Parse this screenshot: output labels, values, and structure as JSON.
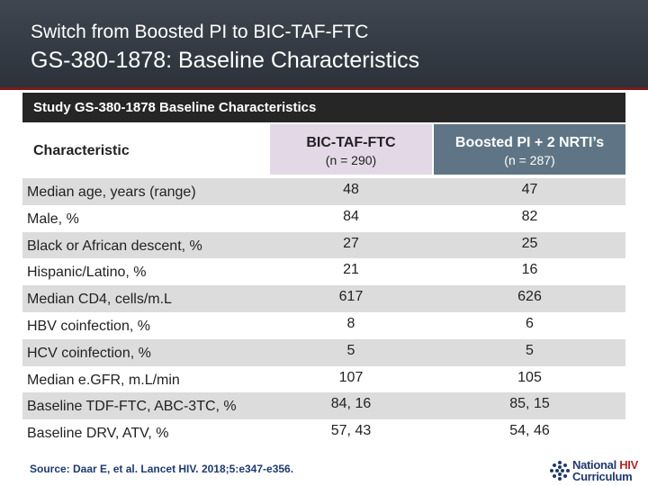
{
  "header": {
    "subtitle": "Switch from Boosted PI to BIC-TAF-FTC",
    "title": "GS-380-1878: Baseline Characteristics"
  },
  "table": {
    "title": "Study GS-380-1878 Baseline Characteristics",
    "char_header": "Characteristic",
    "col1": {
      "name": "BIC-TAF-FTC",
      "n": "(n = 290)"
    },
    "col2": {
      "name": "Boosted PI + 2 NRTI’s",
      "n": "(n = 287)"
    },
    "rows": [
      {
        "label": "Median age, years (range)",
        "v1": "48",
        "v2": "47"
      },
      {
        "label": "Male, %",
        "v1": "84",
        "v2": "82"
      },
      {
        "label": "Black or African descent, %",
        "v1": "27",
        "v2": "25"
      },
      {
        "label": "Hispanic/Latino, %",
        "v1": "21",
        "v2": "16"
      },
      {
        "label": "Median CD4, cells/m.L",
        "v1": "617",
        "v2": "626"
      },
      {
        "label": "HBV coinfection, %",
        "v1": "8",
        "v2": "6"
      },
      {
        "label": "HCV coinfection, %",
        "v1": "5",
        "v2": "5"
      },
      {
        "label": "Median e.GFR, m.L/min",
        "v1": "107",
        "v2": "105"
      },
      {
        "label": "Baseline TDF-FTC, ABC-3TC, %",
        "v1": "84, 16",
        "v2": "85, 15"
      },
      {
        "label": "Baseline DRV, ATV, %",
        "v1": "57, 43",
        "v2": "54, 46"
      }
    ]
  },
  "source": "Source: Daar E, et al. Lancet HIV. 2018;5:e347-e356.",
  "logo": {
    "line1a": "National ",
    "line1b": "HIV",
    "line2": "Curriculum"
  },
  "colors": {
    "header_bg": "#2c323a",
    "accent_line": "#7a1a1a",
    "col1_bg": "#e3d9e6",
    "col2_bg": "#5f7585",
    "row_shade": "#dcdcdc",
    "source_text": "#1f3a6e",
    "logo_red": "#b3282d"
  }
}
